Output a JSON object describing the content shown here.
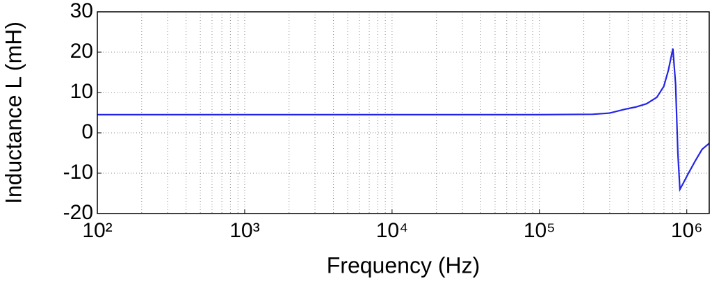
{
  "chart_data": {
    "type": "line",
    "xlabel": "Frequency (Hz)",
    "ylabel": "Inductance L (mH)",
    "x": [
      100,
      1000,
      10000,
      100000,
      230000,
      300000,
      385000,
      450000,
      533000,
      626000,
      698000,
      750000,
      805000,
      840000,
      870000,
      898000,
      946000,
      1020000,
      1140000,
      1270000,
      1420000
    ],
    "values": [
      4.5,
      4.5,
      4.5,
      4.5,
      4.6,
      4.9,
      5.9,
      6.4,
      7.2,
      8.8,
      11.5,
      15.5,
      20.9,
      12,
      -5,
      -14,
      -12.5,
      -10.2,
      -7,
      -4.1,
      -2.6
    ],
    "color": "#2424e8",
    "xscale": "log",
    "xlim": [
      100,
      1420000
    ],
    "xticks": [
      {
        "value": 100,
        "label": "10²"
      },
      {
        "value": 1000,
        "label": "10³"
      },
      {
        "value": 10000,
        "label": "10⁴"
      },
      {
        "value": 100000,
        "label": "10⁵"
      },
      {
        "value": 1000000,
        "label": "10⁶"
      }
    ],
    "xminorticks": [
      200,
      300,
      400,
      500,
      600,
      700,
      800,
      900,
      2000,
      3000,
      4000,
      5000,
      6000,
      7000,
      8000,
      9000,
      20000,
      30000,
      40000,
      50000,
      60000,
      70000,
      80000,
      90000,
      200000,
      300000,
      400000,
      500000,
      600000,
      700000,
      800000,
      900000
    ],
    "ylim": [
      -20,
      30
    ],
    "yticks": [
      -20,
      -10,
      0,
      10,
      20,
      30
    ],
    "grid": true
  }
}
